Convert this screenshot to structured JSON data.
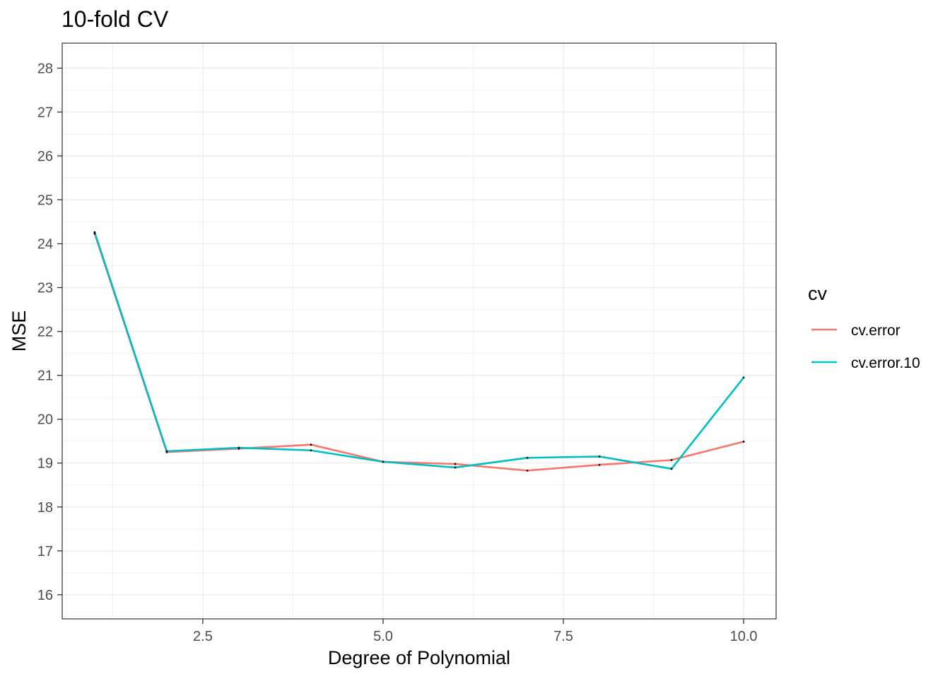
{
  "chart_data": {
    "type": "line",
    "title": "10-fold CV",
    "xlabel": "Degree of Polynomial",
    "ylabel": "MSE",
    "x": [
      1,
      2,
      3,
      4,
      5,
      6,
      7,
      8,
      9,
      10
    ],
    "xlim": [
      0.55,
      10.45
    ],
    "ylim": [
      15.45,
      28.57
    ],
    "x_ticks": [
      2.5,
      5.0,
      7.5,
      10.0
    ],
    "x_tick_labels": [
      "2.5",
      "5.0",
      "7.5",
      "10.0"
    ],
    "y_ticks": [
      16,
      17,
      18,
      19,
      20,
      21,
      22,
      23,
      24,
      25,
      26,
      27,
      28
    ],
    "y_tick_labels": [
      "16",
      "17",
      "18",
      "19",
      "20",
      "21",
      "22",
      "23",
      "24",
      "25",
      "26",
      "27",
      "28"
    ],
    "grid": true,
    "legend": {
      "title": "cv",
      "position": "right"
    },
    "series": [
      {
        "name": "cv.error",
        "color": "#F8766D",
        "values": [
          24.23,
          19.25,
          19.33,
          19.42,
          19.03,
          18.98,
          18.83,
          18.96,
          19.07,
          19.49
        ]
      },
      {
        "name": "cv.error.10",
        "color": "#00BFC4",
        "values": [
          24.26,
          19.27,
          19.35,
          19.29,
          19.03,
          18.9,
          19.12,
          19.15,
          18.87,
          20.95
        ]
      }
    ]
  }
}
